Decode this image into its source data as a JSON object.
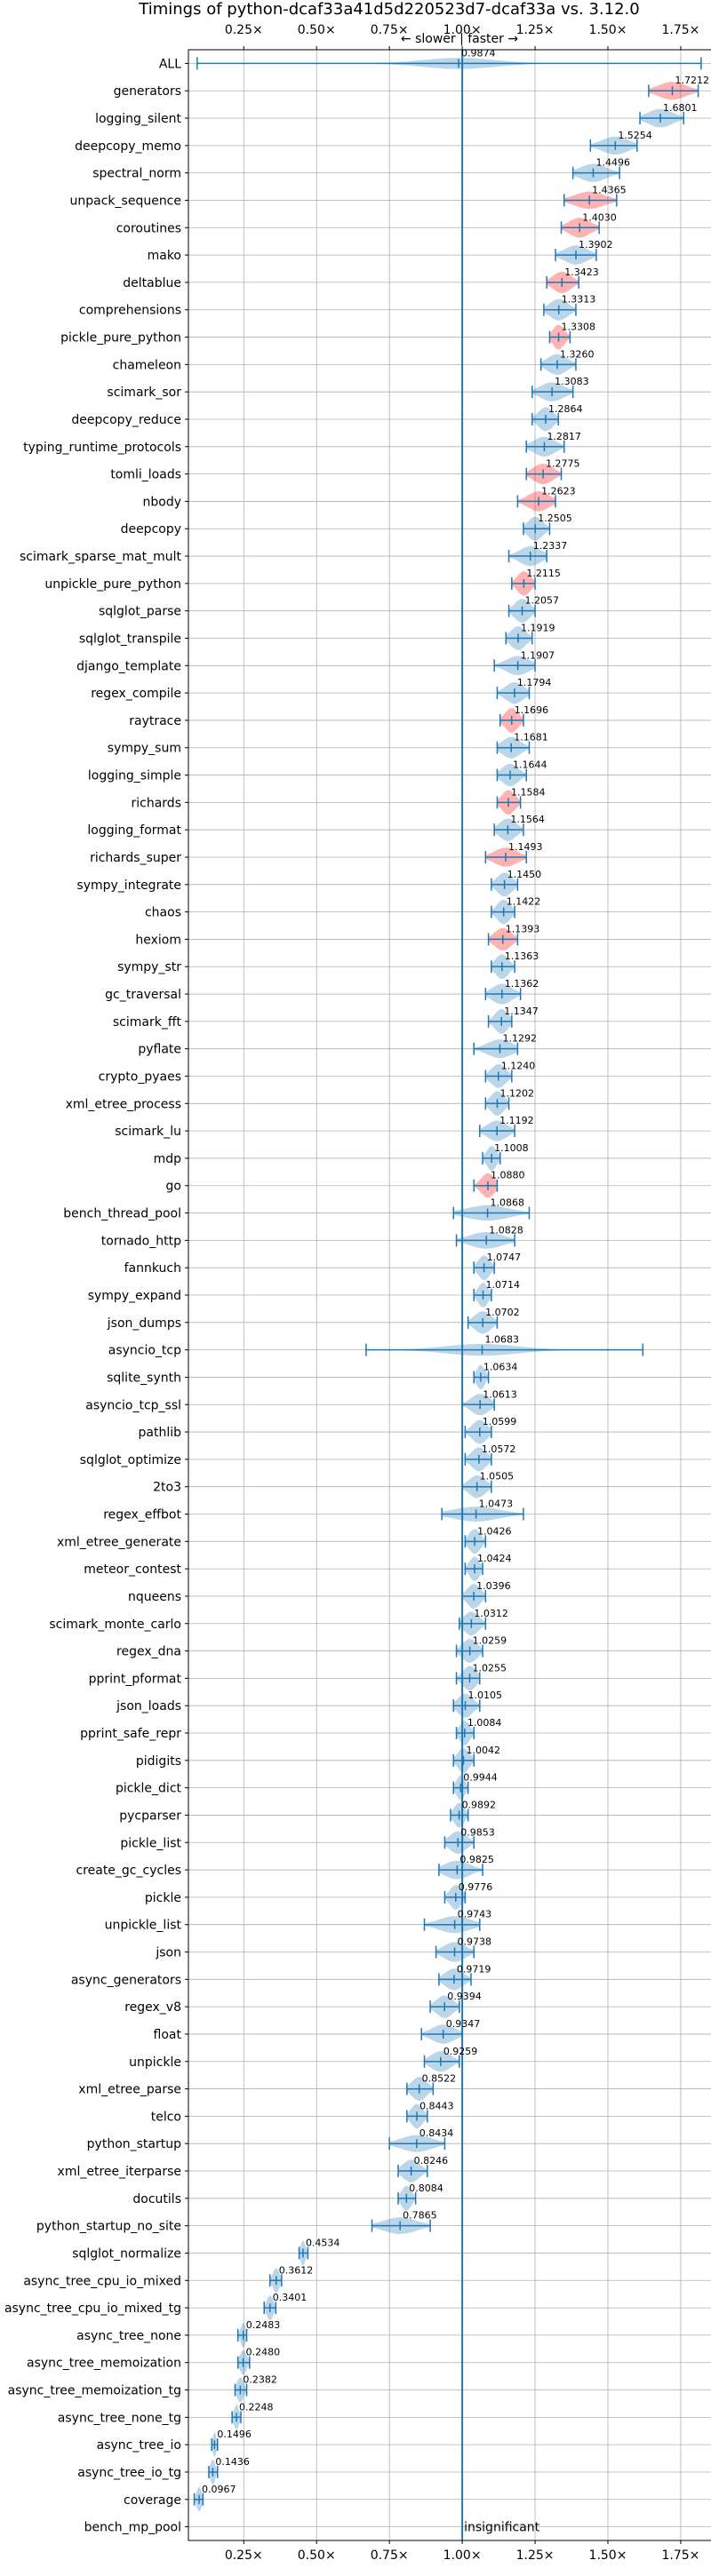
{
  "chart_data": {
    "type": "violin",
    "title": "Timings of python-dcaf33a41d5d220523d7-dcaf33a vs. 3.12.0",
    "direction_label": "← slower | faster →",
    "xlim": [
      0.06,
      1.86
    ],
    "xticks": [
      0.25,
      0.5,
      0.75,
      1.0,
      1.25,
      1.5,
      1.75
    ],
    "xtick_labels": [
      "0.25×",
      "0.50×",
      "0.75×",
      "1.00×",
      "1.25×",
      "1.50×",
      "1.75×"
    ],
    "reference_x": 1.0,
    "colors": {
      "line": "#1f77b4",
      "violin_blue": "#1f77b4",
      "violin_red": "#ff0000"
    },
    "categories": [
      "ALL",
      "generators",
      "logging_silent",
      "deepcopy_memo",
      "spectral_norm",
      "unpack_sequence",
      "coroutines",
      "mako",
      "deltablue",
      "comprehensions",
      "pickle_pure_python",
      "chameleon",
      "scimark_sor",
      "deepcopy_reduce",
      "typing_runtime_protocols",
      "tomli_loads",
      "nbody",
      "deepcopy",
      "scimark_sparse_mat_mult",
      "unpickle_pure_python",
      "sqlglot_parse",
      "sqlglot_transpile",
      "django_template",
      "regex_compile",
      "raytrace",
      "sympy_sum",
      "logging_simple",
      "richards",
      "logging_format",
      "richards_super",
      "sympy_integrate",
      "chaos",
      "hexiom",
      "sympy_str",
      "gc_traversal",
      "scimark_fft",
      "pyflate",
      "crypto_pyaes",
      "xml_etree_process",
      "scimark_lu",
      "mdp",
      "go",
      "bench_thread_pool",
      "tornado_http",
      "fannkuch",
      "sympy_expand",
      "json_dumps",
      "asyncio_tcp",
      "sqlite_synth",
      "asyncio_tcp_ssl",
      "pathlib",
      "sqlglot_optimize",
      "2to3",
      "regex_effbot",
      "xml_etree_generate",
      "meteor_contest",
      "nqueens",
      "scimark_monte_carlo",
      "regex_dna",
      "pprint_pformat",
      "json_loads",
      "pprint_safe_repr",
      "pidigits",
      "pickle_dict",
      "pycparser",
      "pickle_list",
      "create_gc_cycles",
      "pickle",
      "unpickle_list",
      "json",
      "async_generators",
      "regex_v8",
      "float",
      "unpickle",
      "xml_etree_parse",
      "telco",
      "python_startup",
      "xml_etree_iterparse",
      "docutils",
      "python_startup_no_site",
      "sqlglot_normalize",
      "async_tree_cpu_io_mixed",
      "async_tree_cpu_io_mixed_tg",
      "async_tree_none",
      "async_tree_memoization",
      "async_tree_memoization_tg",
      "async_tree_none_tg",
      "async_tree_io",
      "async_tree_io_tg",
      "coverage",
      "bench_mp_pool"
    ],
    "values": [
      0.9874,
      1.7212,
      1.6801,
      1.5254,
      1.4496,
      1.4365,
      1.403,
      1.3902,
      1.3423,
      1.3313,
      1.3308,
      1.326,
      1.3083,
      1.2864,
      1.2817,
      1.2775,
      1.2623,
      1.2505,
      1.2337,
      1.2115,
      1.2057,
      1.1919,
      1.1907,
      1.1794,
      1.1696,
      1.1681,
      1.1644,
      1.1584,
      1.1564,
      1.1493,
      1.145,
      1.1422,
      1.1393,
      1.1363,
      1.1362,
      1.1347,
      1.1292,
      1.124,
      1.1202,
      1.1192,
      1.1008,
      1.088,
      1.0868,
      1.0828,
      1.0747,
      1.0714,
      1.0702,
      1.0683,
      1.0634,
      1.0613,
      1.0599,
      1.0572,
      1.0505,
      1.0473,
      1.0426,
      1.0424,
      1.0396,
      1.0312,
      1.0259,
      1.0255,
      1.0105,
      1.0084,
      1.0042,
      0.9944,
      0.9892,
      0.9853,
      0.9825,
      0.9776,
      0.9743,
      0.9738,
      0.9719,
      0.9394,
      0.9347,
      0.9259,
      0.8522,
      0.8443,
      0.8434,
      0.8246,
      0.8084,
      0.7865,
      0.4534,
      0.3612,
      0.3401,
      0.2483,
      0.248,
      0.2382,
      0.2248,
      0.1496,
      0.1436,
      0.0967,
      null
    ],
    "value_labels": [
      "0.9874",
      "1.7212",
      "1.6801",
      "1.5254",
      "1.4496",
      "1.4365",
      "1.4030",
      "1.3902",
      "1.3423",
      "1.3313",
      "1.3308",
      "1.3260",
      "1.3083",
      "1.2864",
      "1.2817",
      "1.2775",
      "1.2623",
      "1.2505",
      "1.2337",
      "1.2115",
      "1.2057",
      "1.1919",
      "1.1907",
      "1.1794",
      "1.1696",
      "1.1681",
      "1.1644",
      "1.1584",
      "1.1564",
      "1.1493",
      "1.1450",
      "1.1422",
      "1.1393",
      "1.1363",
      "1.1362",
      "1.1347",
      "1.1292",
      "1.1240",
      "1.1202",
      "1.1192",
      "1.1008",
      "1.0880",
      "1.0868",
      "1.0828",
      "1.0747",
      "1.0714",
      "1.0702",
      "1.0683",
      "1.0634",
      "1.0613",
      "1.0599",
      "1.0572",
      "1.0505",
      "1.0473",
      "1.0426",
      "1.0424",
      "1.0396",
      "1.0312",
      "1.0259",
      "1.0255",
      "1.0105",
      "1.0084",
      "1.0042",
      "0.9944",
      "0.9892",
      "0.9853",
      "0.9825",
      "0.9776",
      "0.9743",
      "0.9738",
      "0.9719",
      "0.9394",
      "0.9347",
      "0.9259",
      "0.8522",
      "0.8443",
      "0.8434",
      "0.8246",
      "0.8084",
      "0.7865",
      "0.4534",
      "0.3612",
      "0.3401",
      "0.2483",
      "0.2480",
      "0.2382",
      "0.2248",
      "0.1496",
      "0.1436",
      "0.0967",
      "insignificant"
    ],
    "ranges": [
      [
        0.09,
        1.82
      ],
      [
        1.64,
        1.81
      ],
      [
        1.61,
        1.76
      ],
      [
        1.44,
        1.6
      ],
      [
        1.38,
        1.54
      ],
      [
        1.35,
        1.53
      ],
      [
        1.34,
        1.47
      ],
      [
        1.32,
        1.46
      ],
      [
        1.29,
        1.4
      ],
      [
        1.28,
        1.39
      ],
      [
        1.3,
        1.37
      ],
      [
        1.27,
        1.39
      ],
      [
        1.24,
        1.38
      ],
      [
        1.24,
        1.33
      ],
      [
        1.22,
        1.35
      ],
      [
        1.22,
        1.34
      ],
      [
        1.19,
        1.32
      ],
      [
        1.21,
        1.3
      ],
      [
        1.16,
        1.29
      ],
      [
        1.17,
        1.25
      ],
      [
        1.16,
        1.25
      ],
      [
        1.15,
        1.24
      ],
      [
        1.11,
        1.25
      ],
      [
        1.12,
        1.23
      ],
      [
        1.13,
        1.21
      ],
      [
        1.12,
        1.23
      ],
      [
        1.12,
        1.22
      ],
      [
        1.12,
        1.2
      ],
      [
        1.11,
        1.21
      ],
      [
        1.08,
        1.22
      ],
      [
        1.1,
        1.19
      ],
      [
        1.1,
        1.18
      ],
      [
        1.09,
        1.19
      ],
      [
        1.1,
        1.18
      ],
      [
        1.08,
        1.2
      ],
      [
        1.09,
        1.17
      ],
      [
        1.04,
        1.19
      ],
      [
        1.08,
        1.17
      ],
      [
        1.08,
        1.16
      ],
      [
        1.06,
        1.18
      ],
      [
        1.07,
        1.13
      ],
      [
        1.04,
        1.12
      ],
      [
        0.97,
        1.23
      ],
      [
        0.98,
        1.18
      ],
      [
        1.04,
        1.11
      ],
      [
        1.04,
        1.1
      ],
      [
        1.02,
        1.12
      ],
      [
        0.67,
        1.62
      ],
      [
        1.04,
        1.09
      ],
      [
        1.0,
        1.11
      ],
      [
        1.01,
        1.1
      ],
      [
        1.01,
        1.1
      ],
      [
        1.0,
        1.1
      ],
      [
        0.93,
        1.21
      ],
      [
        1.01,
        1.08
      ],
      [
        1.01,
        1.07
      ],
      [
        1.0,
        1.08
      ],
      [
        0.99,
        1.08
      ],
      [
        0.98,
        1.07
      ],
      [
        0.98,
        1.06
      ],
      [
        0.97,
        1.06
      ],
      [
        0.98,
        1.04
      ],
      [
        0.97,
        1.04
      ],
      [
        0.97,
        1.02
      ],
      [
        0.96,
        1.02
      ],
      [
        0.94,
        1.04
      ],
      [
        0.92,
        1.07
      ],
      [
        0.94,
        1.01
      ],
      [
        0.87,
        1.06
      ],
      [
        0.91,
        1.04
      ],
      [
        0.92,
        1.03
      ],
      [
        0.89,
        0.99
      ],
      [
        0.86,
        1.0
      ],
      [
        0.87,
        0.99
      ],
      [
        0.81,
        0.9
      ],
      [
        0.81,
        0.88
      ],
      [
        0.75,
        0.94
      ],
      [
        0.78,
        0.88
      ],
      [
        0.78,
        0.84
      ],
      [
        0.69,
        0.89
      ],
      [
        0.44,
        0.47
      ],
      [
        0.34,
        0.38
      ],
      [
        0.32,
        0.36
      ],
      [
        0.23,
        0.26
      ],
      [
        0.23,
        0.27
      ],
      [
        0.22,
        0.26
      ],
      [
        0.21,
        0.24
      ],
      [
        0.14,
        0.16
      ],
      [
        0.13,
        0.16
      ],
      [
        0.08,
        0.11
      ],
      [
        null,
        null
      ]
    ],
    "significant_slow": [
      false,
      true,
      false,
      false,
      false,
      true,
      true,
      false,
      true,
      false,
      true,
      false,
      false,
      false,
      false,
      true,
      true,
      false,
      false,
      true,
      false,
      false,
      false,
      false,
      true,
      false,
      false,
      true,
      false,
      true,
      false,
      false,
      true,
      false,
      false,
      false,
      false,
      false,
      false,
      false,
      false,
      true,
      false,
      false,
      false,
      false,
      false,
      false,
      false,
      false,
      false,
      false,
      false,
      false,
      false,
      false,
      false,
      false,
      false,
      false,
      false,
      false,
      false,
      false,
      false,
      false,
      false,
      false,
      false,
      false,
      false,
      false,
      false,
      false,
      false,
      false,
      false,
      false,
      false,
      false,
      false,
      false,
      false,
      false,
      false,
      false,
      false,
      false,
      false,
      false,
      false
    ]
  }
}
